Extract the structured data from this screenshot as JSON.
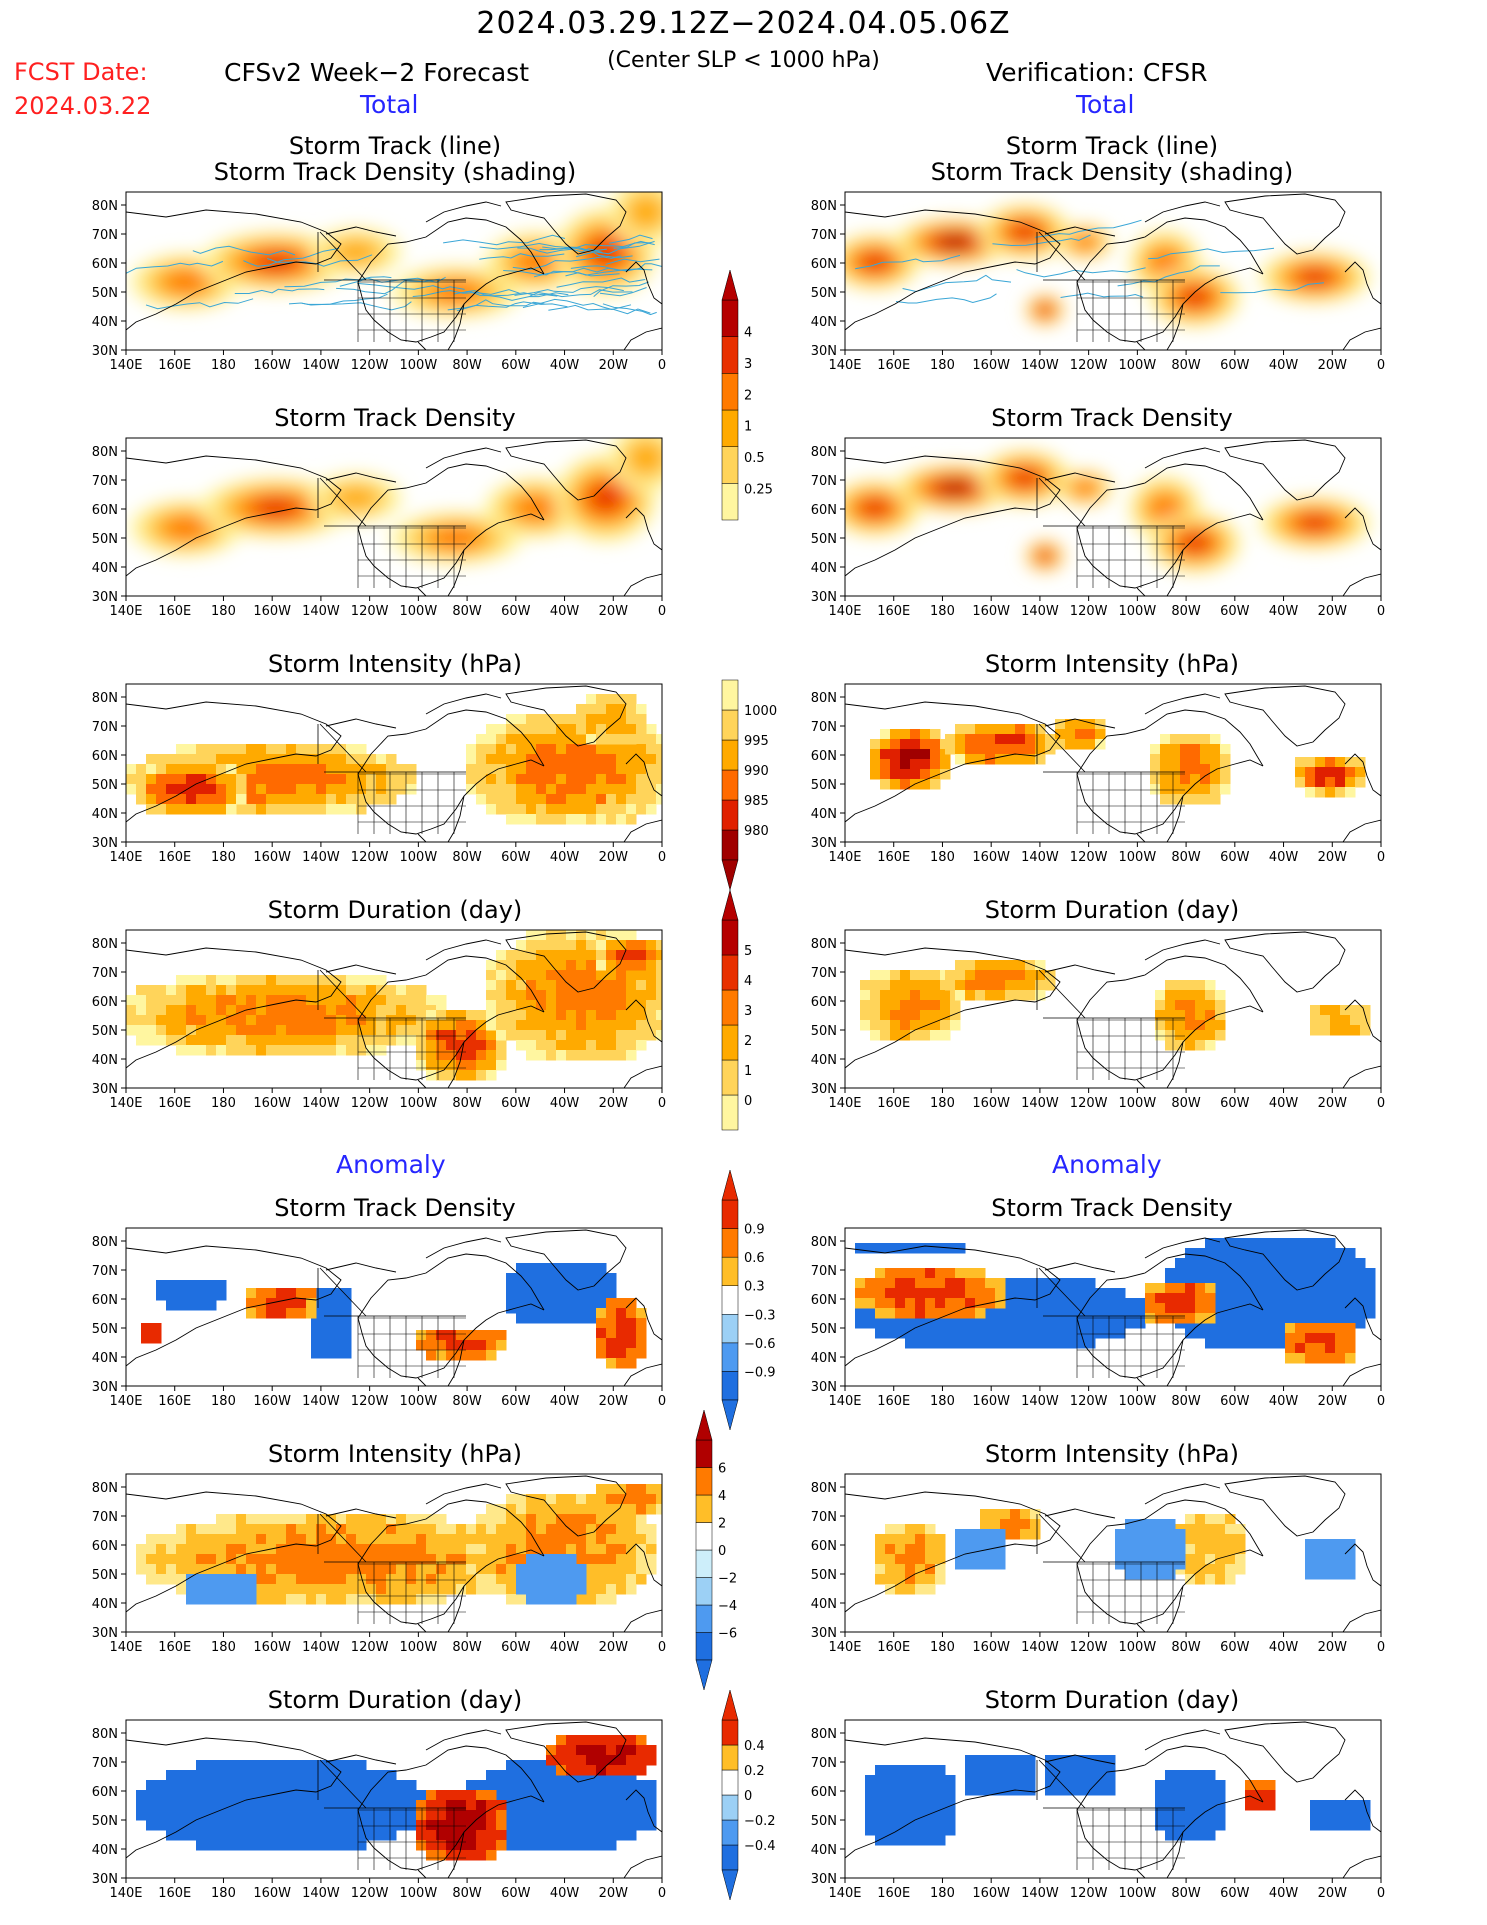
{
  "header": {
    "title": "2024.03.29.12Z−2024.04.05.06Z",
    "subtitle": "(Center SLP < 1000 hPa)",
    "fcst_label": "FCST Date:",
    "fcst_date": "2024.03.22",
    "model_name": "CFSv2 Week−2 Forecast",
    "verification_name": "Verification: CFSR",
    "left_total": "Total",
    "right_total": "Total",
    "left_anomaly": "Anomaly",
    "right_anomaly": "Anomaly"
  },
  "panel_titles": {
    "track_line": "Storm Track (line)",
    "track_shading": "Storm Track Density (shading)",
    "density": "Storm Track Density",
    "intensity": "Storm Intensity (hPa)",
    "duration": "Storm Duration (day)"
  },
  "axes": {
    "lat_labels": [
      "80N",
      "70N",
      "60N",
      "50N",
      "40N",
      "30N"
    ],
    "lon_labels": [
      "140E",
      "160E",
      "180",
      "160W",
      "140W",
      "120W",
      "100W",
      "80W",
      "60W",
      "40W",
      "20W",
      "0"
    ]
  },
  "colorbars": {
    "density_total": [
      "0.25",
      "0.5",
      "1",
      "2",
      "3",
      "4"
    ],
    "intensity_total": [
      "1000",
      "995",
      "990",
      "985",
      "980"
    ],
    "duration_total": [
      "0",
      "1",
      "2",
      "3",
      "4",
      "5"
    ],
    "density_anomaly": [
      "0.9",
      "0.6",
      "0.3",
      "−0.3",
      "−0.6",
      "−0.9"
    ],
    "intensity_anomaly": [
      "6",
      "4",
      "2",
      "0",
      "−2",
      "−4",
      "−6"
    ],
    "duration_anomaly": [
      "0.4",
      "0.2",
      "0",
      "−0.2",
      "−0.4"
    ]
  },
  "colors": {
    "total_scale": [
      "#fff6a0",
      "#ffd45a",
      "#ffaa00",
      "#ff7a00",
      "#e83000",
      "#b50000"
    ],
    "intensity_scale": [
      "#fff6a0",
      "#ffd45a",
      "#ffaa00",
      "#ff6a00",
      "#e02000",
      "#a00000"
    ],
    "anomaly_scale": [
      "#1f6fe0",
      "#4e9af0",
      "#9cd0f5",
      "#cdeefa",
      "#ffffff",
      "#ffe88a",
      "#ffbe28",
      "#ff7a00",
      "#e82a00",
      "#b00000"
    ],
    "track_line": "#3aa6d6"
  }
}
